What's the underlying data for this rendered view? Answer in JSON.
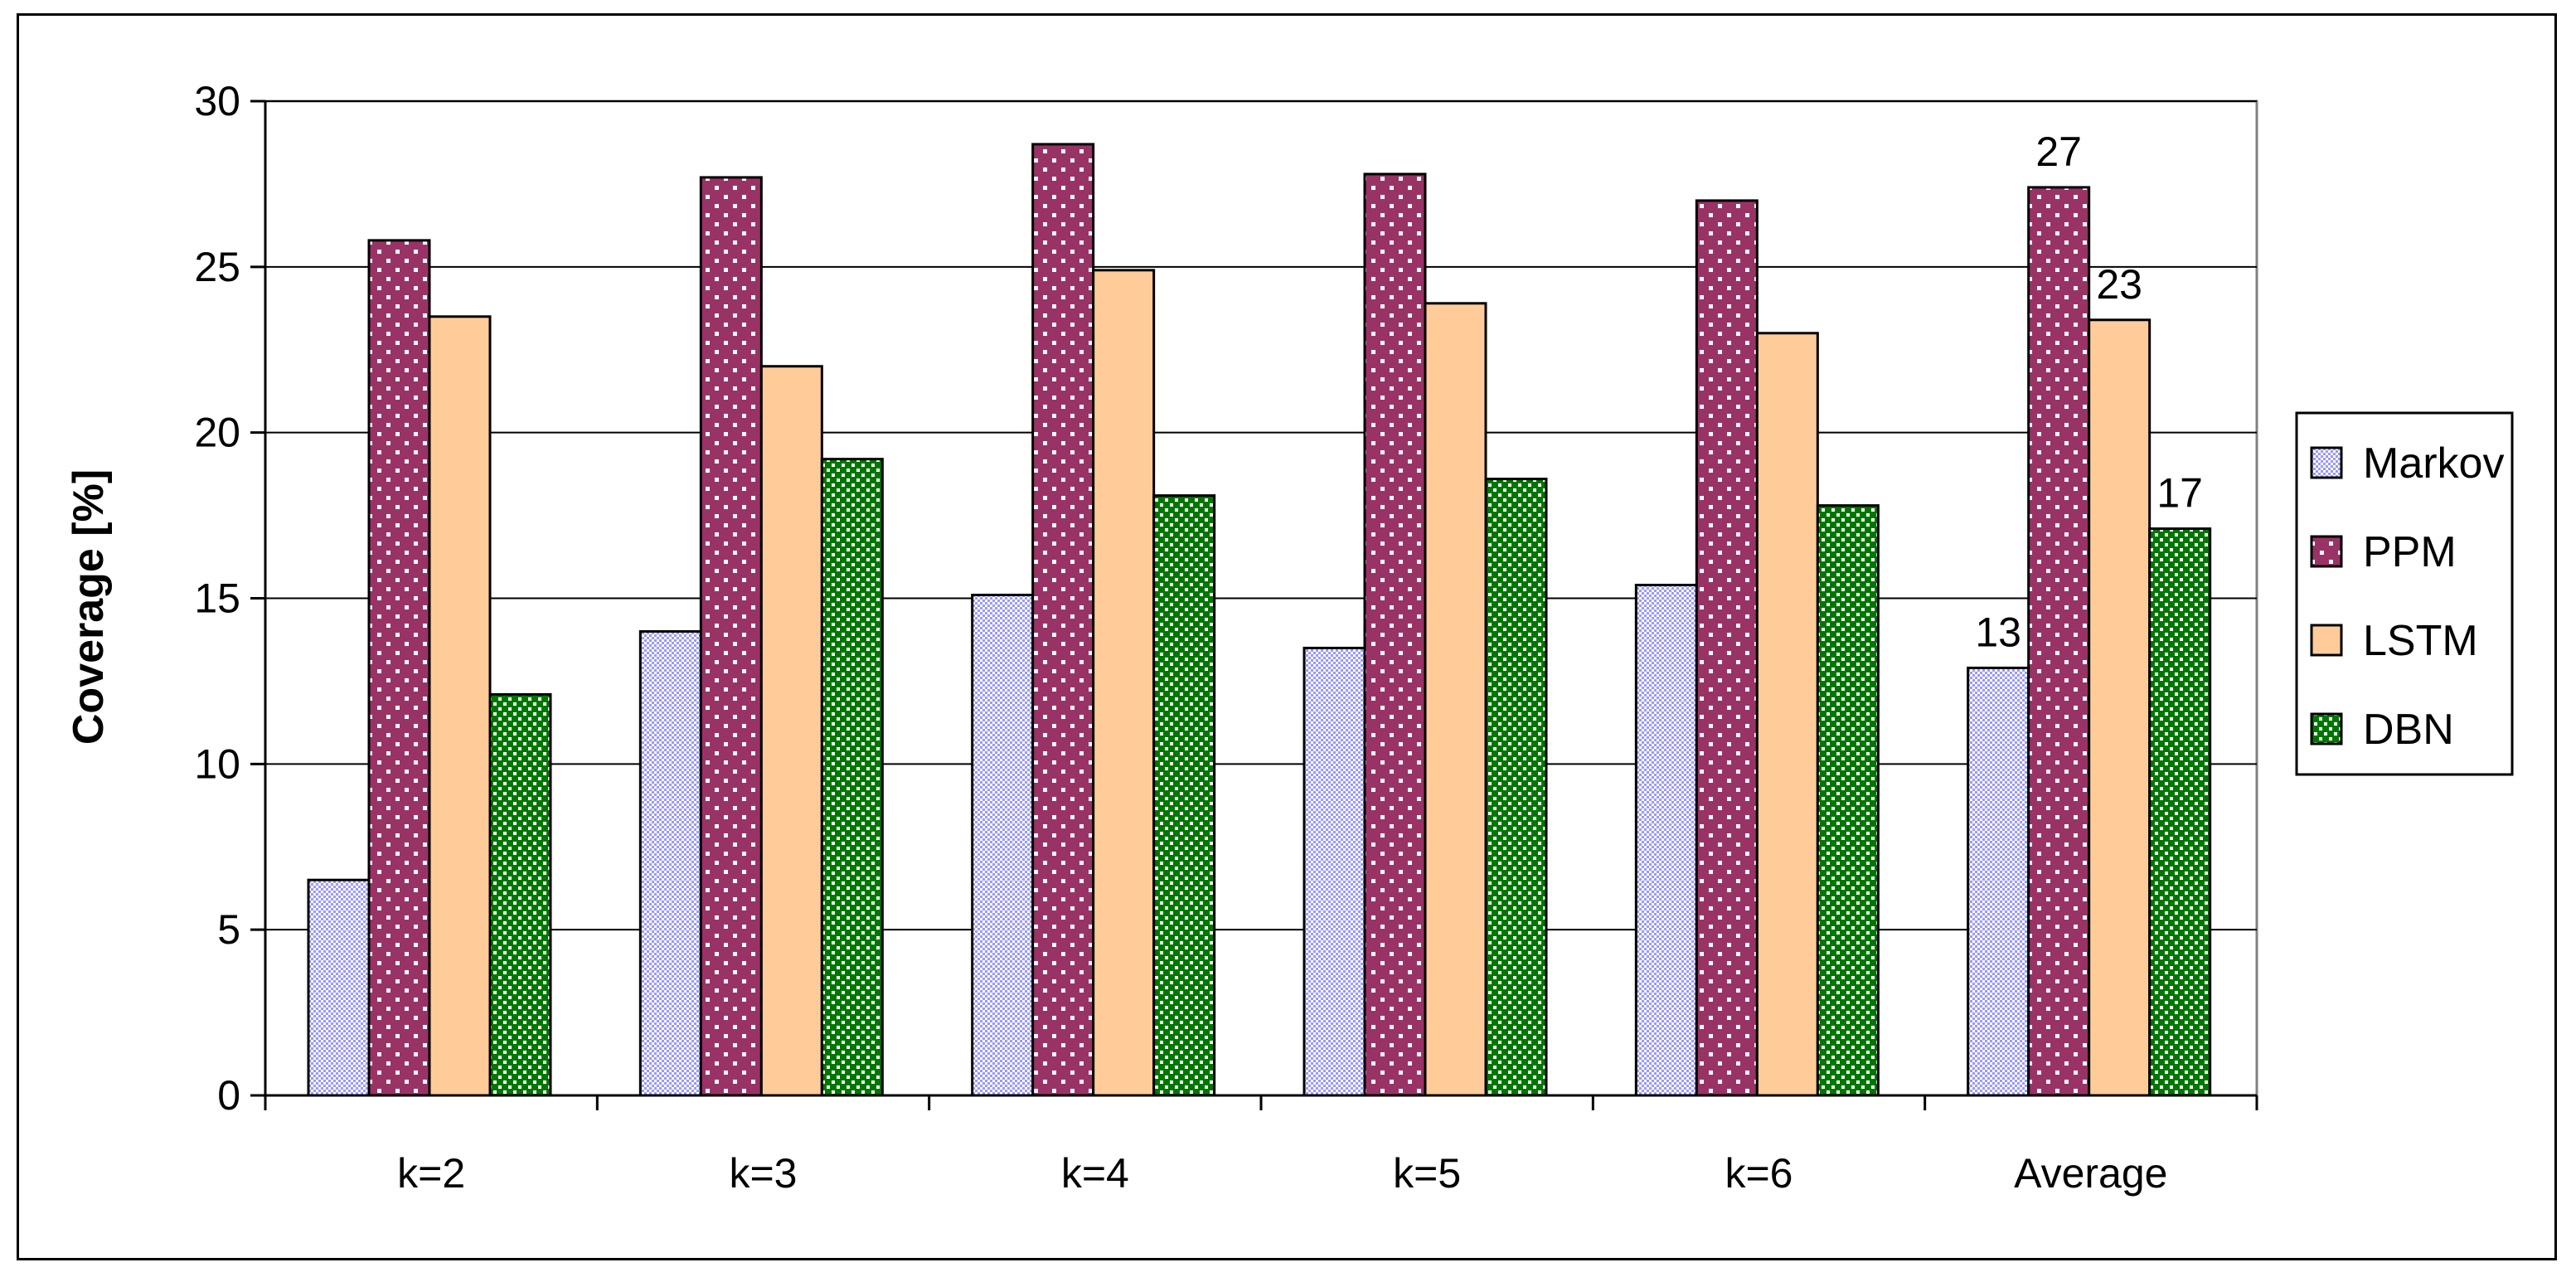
{
  "chart_data": {
    "type": "bar",
    "ylabel": "Coverage [%]",
    "xlabel": "",
    "ylim": [
      0,
      30
    ],
    "yticks": [
      0,
      5,
      10,
      15,
      20,
      25,
      30
    ],
    "grid": true,
    "legend_position": "right",
    "categories": [
      "k=2",
      "k=3",
      "k=4",
      "k=5",
      "k=6",
      "Average"
    ],
    "series": [
      {
        "name": "Markov",
        "values": [
          6.5,
          14.0,
          15.1,
          13.5,
          15.4,
          12.9
        ],
        "color": "#ccccff",
        "pattern": "checker"
      },
      {
        "name": "PPM",
        "values": [
          25.8,
          27.7,
          28.7,
          27.8,
          27.0,
          27.4
        ],
        "color": "#993366",
        "pattern": "dots"
      },
      {
        "name": "LSTM",
        "values": [
          23.5,
          22.0,
          24.9,
          23.9,
          23.0,
          23.4
        ],
        "color": "#ffcc99",
        "pattern": "solid"
      },
      {
        "name": "DBN",
        "values": [
          12.1,
          19.2,
          18.1,
          18.6,
          17.8,
          17.1
        ],
        "color": "#339933",
        "pattern": "checker"
      }
    ],
    "data_labels": [
      {
        "category": "Average",
        "series": "Markov",
        "text": "13"
      },
      {
        "category": "Average",
        "series": "PPM",
        "text": "27"
      },
      {
        "category": "Average",
        "series": "LSTM",
        "text": "23"
      },
      {
        "category": "Average",
        "series": "DBN",
        "text": "17"
      }
    ]
  }
}
